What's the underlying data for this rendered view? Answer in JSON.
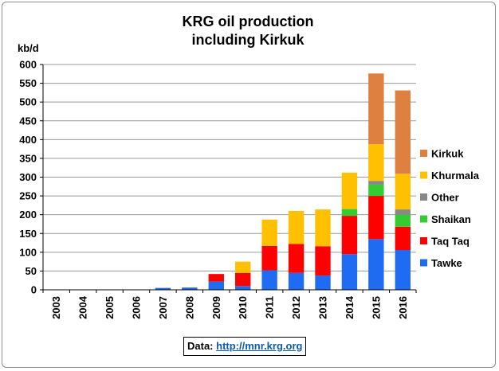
{
  "chart_data": {
    "type": "bar",
    "stacked": true,
    "title_lines": [
      "KRG oil production",
      "including Kirkuk"
    ],
    "ylabel": "kb/d",
    "xlabel": "",
    "ylim": [
      0,
      600
    ],
    "yticks": [
      0,
      50,
      100,
      150,
      200,
      250,
      300,
      350,
      400,
      450,
      500,
      550,
      600
    ],
    "grid": "horizontal",
    "legend_position": "right",
    "categories": [
      "2003",
      "2004",
      "2005",
      "2006",
      "2007",
      "2008",
      "2009",
      "2010",
      "2011",
      "2012",
      "2013",
      "2014",
      "2015",
      "2016"
    ],
    "series": [
      {
        "name": "Tawke",
        "color": "#1f6cf2",
        "values": [
          0,
          0,
          0,
          0,
          5,
          6,
          22,
          10,
          52,
          45,
          38,
          95,
          135,
          106
        ]
      },
      {
        "name": "Taq Taq",
        "color": "#ff0000",
        "values": [
          0,
          0,
          0,
          0,
          0,
          0,
          20,
          35,
          65,
          77,
          78,
          102,
          115,
          62
        ]
      },
      {
        "name": "Shaikan",
        "color": "#33cc33",
        "values": [
          0,
          0,
          0,
          0,
          0,
          0,
          0,
          0,
          0,
          0,
          0,
          18,
          30,
          32
        ]
      },
      {
        "name": "Other",
        "color": "#888888",
        "values": [
          0,
          0,
          0,
          0,
          0,
          0,
          0,
          0,
          0,
          0,
          0,
          0,
          10,
          14
        ]
      },
      {
        "name": "Khurmala",
        "color": "#ffc000",
        "values": [
          0,
          0,
          0,
          0,
          0,
          0,
          0,
          30,
          70,
          88,
          98,
          97,
          98,
          95
        ]
      },
      {
        "name": "Kirkuk",
        "color": "#dd8040",
        "values": [
          0,
          0,
          0,
          0,
          0,
          0,
          0,
          0,
          0,
          0,
          0,
          0,
          188,
          222
        ]
      }
    ],
    "legend_order": [
      "Kirkuk",
      "Khurmala",
      "Other",
      "Shaikan",
      "Taq Taq",
      "Tawke"
    ]
  },
  "source": {
    "prefix": "Data:",
    "link_text": "http://mnr.krg.org"
  }
}
